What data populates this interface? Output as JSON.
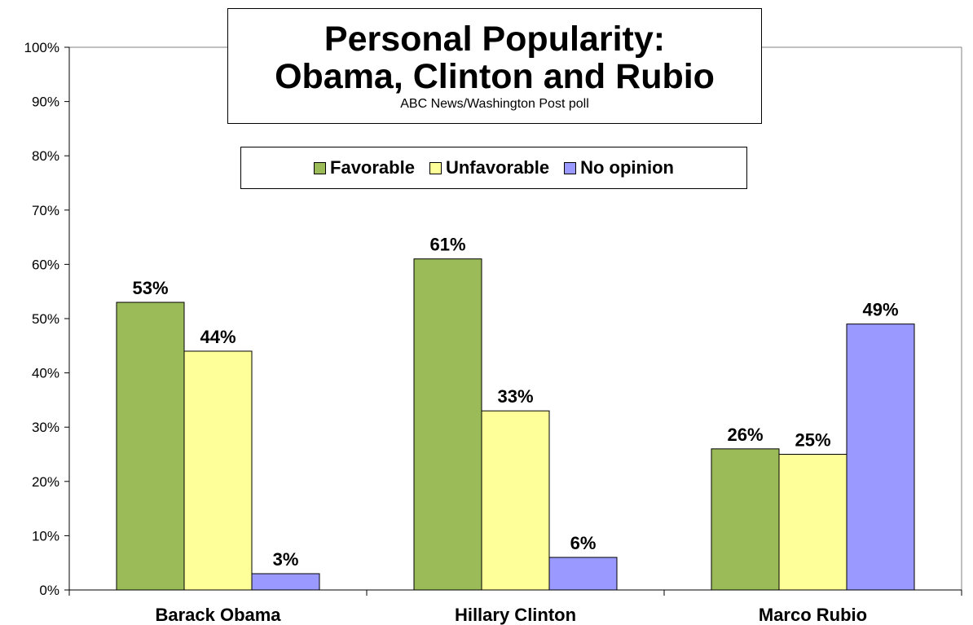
{
  "chart_data": {
    "type": "bar",
    "title": "Personal Popularity:",
    "title_line2": "Obama, Clinton and Rubio",
    "subtitle": "ABC News/Washington Post poll",
    "categories": [
      "Barack Obama",
      "Hillary Clinton",
      "Marco Rubio"
    ],
    "series": [
      {
        "name": "Favorable",
        "values": [
          53,
          61,
          26
        ],
        "labels": [
          "53%",
          "61%",
          "26%"
        ],
        "color": "#9BBB59"
      },
      {
        "name": "Unfavorable",
        "values": [
          44,
          33,
          25
        ],
        "labels": [
          "44%",
          "33%",
          "25%"
        ],
        "color": "#FFFF99"
      },
      {
        "name": "No opinion",
        "values": [
          3,
          6,
          49
        ],
        "labels": [
          "3%",
          "6%",
          "49%"
        ],
        "color": "#9999FF"
      }
    ],
    "ylim": [
      0,
      100
    ],
    "yticks": [
      "0%",
      "10%",
      "20%",
      "30%",
      "40%",
      "50%",
      "60%",
      "70%",
      "80%",
      "90%",
      "100%"
    ],
    "xlabel": "",
    "ylabel": "",
    "grid": false,
    "legend": "top-center"
  }
}
